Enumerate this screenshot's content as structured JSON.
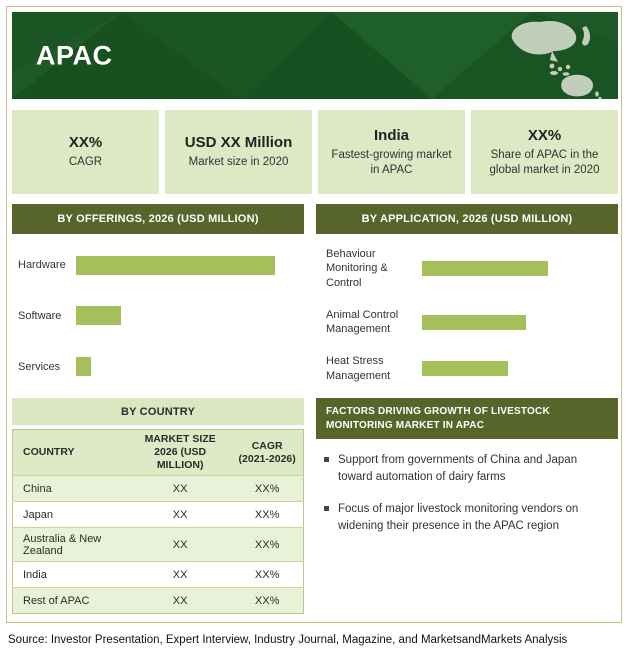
{
  "colors": {
    "banner_green": "#1d5a27",
    "section_header_green": "#57652b",
    "stat_box_green": "#dde8c4",
    "bar_green": "#a5c05b",
    "table_row_green": "#e9f1d8",
    "table_header_green": "#dfe9c6"
  },
  "banner": {
    "title": "APAC"
  },
  "stats": [
    {
      "value": "XX%",
      "label": "CAGR"
    },
    {
      "value": "USD XX Million",
      "label": "Market size in 2020"
    },
    {
      "value": "India",
      "label": "Fastest-growing market in APAC"
    },
    {
      "value": "XX%",
      "label": "Share of APAC  in the global market in 2020"
    }
  ],
  "offerings_header": "BY OFFERINGS, 2026 (USD MILLION)",
  "application_header": "BY APPLICATION, 2026 (USD MILLION)",
  "by_country_header": "BY COUNTRY",
  "country_table": {
    "columns": [
      {
        "line1": "COUNTRY",
        "line2": ""
      },
      {
        "line1": "MARKET SIZE",
        "line2": "2026  (USD MILLION)"
      },
      {
        "line1": "CAGR",
        "line2": "(2021-2026)"
      }
    ],
    "rows": [
      {
        "country": "China",
        "market_size": "XX",
        "cagr": "XX%"
      },
      {
        "country": "Japan",
        "market_size": "XX",
        "cagr": "XX%"
      },
      {
        "country": "Australia & New Zealand",
        "market_size": "XX",
        "cagr": "XX%"
      },
      {
        "country": "India",
        "market_size": "XX",
        "cagr": "XX%"
      },
      {
        "country": "Rest of APAC",
        "market_size": "XX",
        "cagr": "XX%"
      }
    ]
  },
  "factors": {
    "header": "FACTORS DRIVING GROWTH OF LIVESTOCK MONITORING MARKET IN APAC",
    "bullets": [
      "Support from governments of China and Japan toward automation of dairy farms",
      "Focus of major livestock monitoring vendors on widening their presence in the APAC region"
    ]
  },
  "source": "Source: Investor Presentation, Expert Interview, Industry Journal, Magazine, and MarketsandMarkets Analysis",
  "chart_data": [
    {
      "type": "bar",
      "orientation": "horizontal",
      "title": "BY OFFERINGS, 2026 (USD MILLION)",
      "categories": [
        "Hardware",
        "Software",
        "Services"
      ],
      "values": [
        "XX",
        "XX",
        "XX"
      ],
      "relative_lengths_pct": [
        93,
        21,
        7
      ],
      "bar_color": "#a5c05b",
      "note": "numeric values masked as XX in source image; relative_lengths_pct are bar lengths as % of track"
    },
    {
      "type": "bar",
      "orientation": "horizontal",
      "title": "BY APPLICATION, 2026 (USD MILLION)",
      "categories": [
        "Behaviour Monitoring & Control",
        "Animal Control Management",
        "Heat Stress Management"
      ],
      "values": [
        "XX",
        "XX",
        "XX"
      ],
      "relative_lengths_pct": [
        69,
        57,
        47
      ],
      "bar_color": "#a5c05b",
      "note": "numeric values masked as XX in source image; relative_lengths_pct are bar lengths as % of track"
    },
    {
      "type": "table",
      "title": "BY COUNTRY",
      "columns": [
        "COUNTRY",
        "MARKET SIZE 2026 (USD MILLION)",
        "CAGR (2021-2026)"
      ],
      "rows": [
        [
          "China",
          "XX",
          "XX%"
        ],
        [
          "Japan",
          "XX",
          "XX%"
        ],
        [
          "Australia & New Zealand",
          "XX",
          "XX%"
        ],
        [
          "India",
          "XX",
          "XX%"
        ],
        [
          "Rest of APAC",
          "XX",
          "XX%"
        ]
      ]
    }
  ]
}
